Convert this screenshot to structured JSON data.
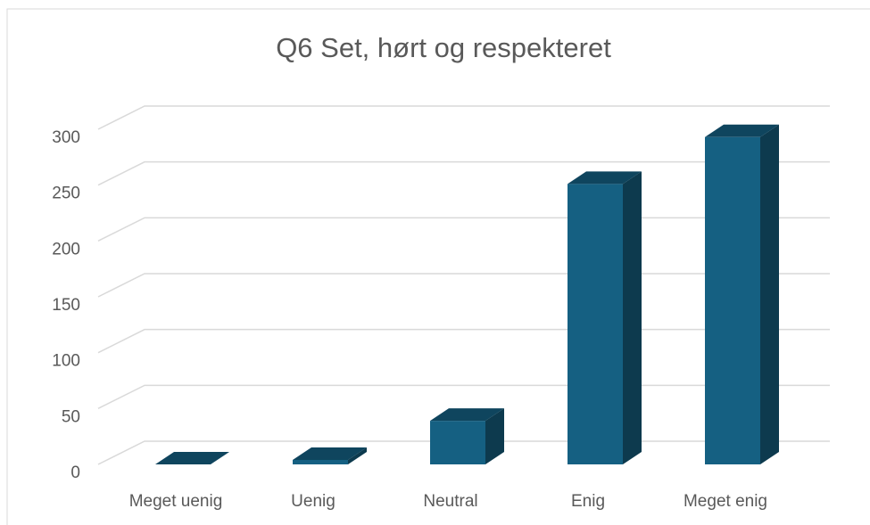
{
  "chart_data": {
    "type": "bar3d",
    "title": "Q6 Set, hørt og respekteret",
    "categories": [
      "Meget uenig",
      "Uenig",
      "Neutral",
      "Enig",
      "Meget enig"
    ],
    "values": [
      0,
      4,
      39,
      251,
      293
    ],
    "color": "#156082",
    "ylim": [
      0,
      300
    ],
    "yticks": [
      0,
      50,
      100,
      150,
      200,
      250,
      300
    ],
    "grid": true
  }
}
